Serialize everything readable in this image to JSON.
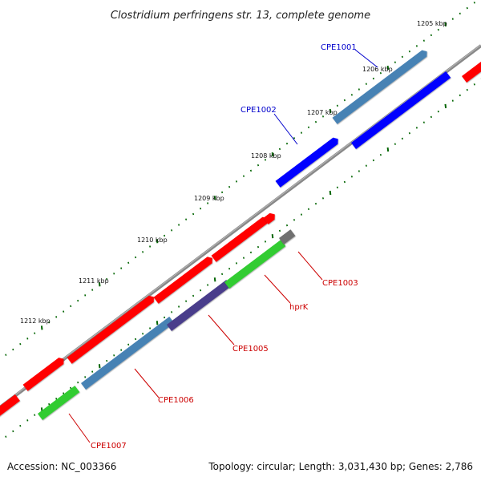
{
  "title": "Clostridium perfringens str. 13, complete genome",
  "accession_text": "Accession: NC_003366",
  "topology_text": "Topology: circular; Length: 3,031,430 bp; Genes: 2,786",
  "tick_labels": [
    "1205 kbp",
    "1206 kbp",
    "1207 kbp",
    "1208 kbp",
    "1209 kbp",
    "1210 kbp",
    "1211 kbp",
    "1212 kbp"
  ],
  "gene_labels": [
    "CPE1001",
    "CPE1002",
    "CPE1003",
    "hprK",
    "CPE1005",
    "CPE1006",
    "CPE1007"
  ],
  "colors": {
    "backbone": "#808080",
    "forward_cds": "#ff0000",
    "reverse_cds": "#0000ff",
    "steelblue": "#4682b4",
    "green": "#33cc33",
    "slate": "#483d8b",
    "gray": "#707070",
    "tick": "#006400",
    "label_red": "#cc0000",
    "label_blue": "#0000cc"
  }
}
